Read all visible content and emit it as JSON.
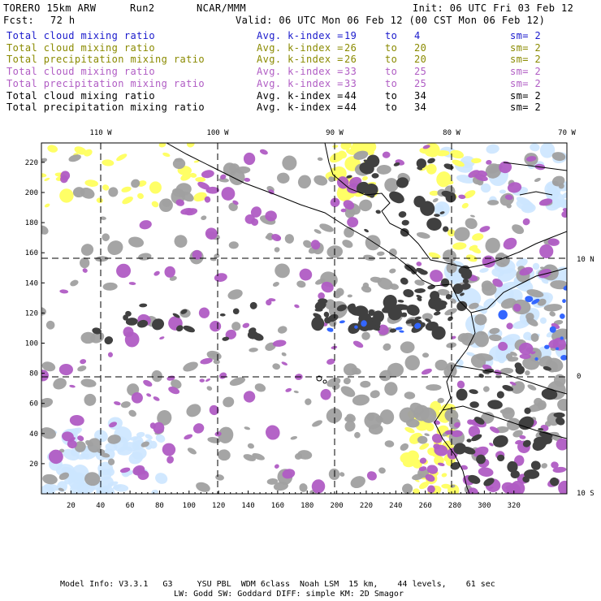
{
  "header": {
    "model": "TORERO 15km ARW",
    "run": "Run2",
    "center": "NCAR/MMM",
    "init": "Init: 06 UTC Fri 03 Feb 12",
    "fcst_label": "Fcst:",
    "fcst_value": "72 h",
    "valid": "Valid: 06 UTC Mon 06 Feb 12 (00 CST Mon 06 Feb 12)"
  },
  "legend": [
    {
      "name": "Total cloud mixing ratio",
      "kindex": "Avg. k-index =",
      "from": "19",
      "to_word": "to",
      "to": "4",
      "sm": "sm= 2",
      "color": "#1a1acc"
    },
    {
      "name": "Total cloud mixing ratio",
      "kindex": "Avg. k-index =",
      "from": "26",
      "to_word": "to",
      "to": "20",
      "sm": "sm= 2",
      "color": "#8a8a00"
    },
    {
      "name": "Total precipitation mixing ratio",
      "kindex": "Avg. k-index =",
      "from": "26",
      "to_word": "to",
      "to": "20",
      "sm": "sm= 2",
      "color": "#8a8a00"
    },
    {
      "name": "Total cloud mixing ratio",
      "kindex": "Avg. k-index =",
      "from": "33",
      "to_word": "to",
      "to": "25",
      "sm": "sm= 2",
      "color": "#b05cc4"
    },
    {
      "name": "Total precipitation mixing ratio",
      "kindex": "Avg. k-index =",
      "from": "33",
      "to_word": "to",
      "to": "25",
      "sm": "sm= 2",
      "color": "#b05cc4"
    },
    {
      "name": "Total cloud mixing ratio",
      "kindex": "Avg. k-index =",
      "from": "44",
      "to_word": "to",
      "to": "34",
      "sm": "sm= 2",
      "color": "#000000"
    },
    {
      "name": "Total precipitation mixing ratio",
      "kindex": "Avg. k-index =",
      "from": "44",
      "to_word": "to",
      "to": "34",
      "sm": "sm= 2",
      "color": "#000000"
    }
  ],
  "map": {
    "x_ticks": [
      "20",
      "40",
      "60",
      "80",
      "100",
      "120",
      "140",
      "160",
      "180",
      "200",
      "220",
      "240",
      "260",
      "280",
      "300",
      "320"
    ],
    "y_ticks": [
      "20",
      "40",
      "60",
      "80",
      "100",
      "120",
      "140",
      "160",
      "180",
      "200",
      "220"
    ],
    "lon_labels": [
      "110 W",
      "100 W",
      "90 W",
      "80 W",
      "70 W"
    ],
    "lat_labels": [
      "10 N",
      "0",
      "10 S"
    ],
    "colors": {
      "gray": "#a0a0a0",
      "dark": "#404040",
      "purple": "#b05cc4",
      "yellow": "#ffff66",
      "lightblue": "#cce6ff",
      "blue": "#3366ff",
      "coast": "#000000"
    }
  },
  "footer": {
    "line1": "Model Info: V3.3.1   G3     YSU PBL  WDM 6class  Noah LSM  15 km,    44 levels,    61 sec",
    "line2": "LW: Godd SW: Goddard DIFF: simple KM: 2D Smagor"
  }
}
